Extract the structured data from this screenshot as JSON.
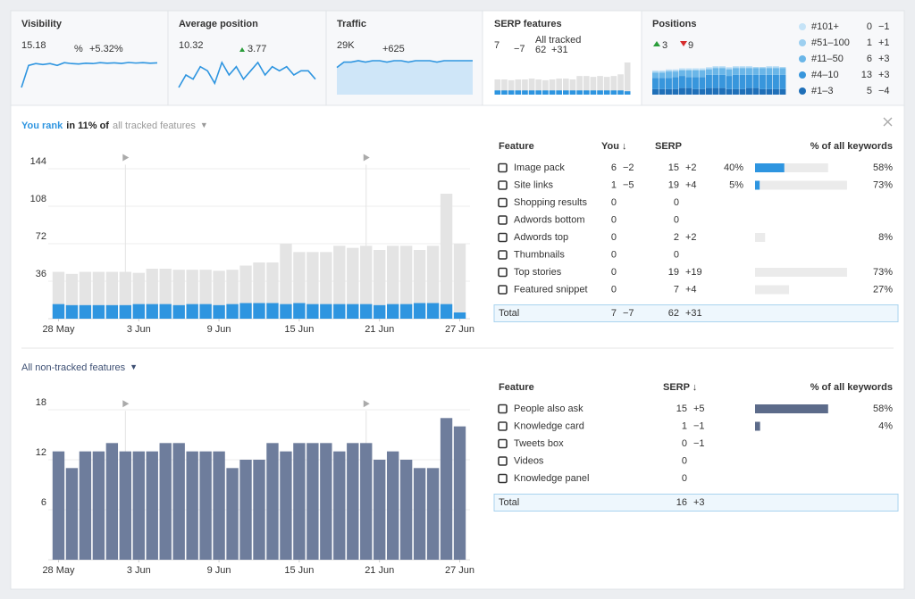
{
  "top": {
    "visibility": {
      "label": "Visibility",
      "value": "15.18",
      "unit": "%",
      "change": "+5.32%",
      "spark": [
        2,
        14,
        15,
        14.5,
        15,
        14,
        15.5,
        15,
        14.8,
        15.2,
        15,
        15.5,
        15.2,
        15.4,
        15.1,
        15.6,
        15.3,
        15.5,
        15.2,
        15.4
      ]
    },
    "position": {
      "label": "Average position",
      "value": "10.32",
      "change": "3.77",
      "spark": [
        3,
        6,
        5,
        8,
        7,
        4,
        9,
        6,
        8,
        5,
        7,
        9,
        6,
        8,
        7,
        8,
        6,
        7,
        7,
        5
      ]
    },
    "traffic": {
      "label": "Traffic",
      "value": "29K",
      "change": "+625",
      "spark": [
        20,
        24,
        24,
        25,
        24,
        25,
        25,
        24,
        25,
        25,
        24,
        25,
        25,
        25,
        24,
        25,
        25,
        25,
        25,
        25
      ]
    },
    "serp": {
      "label": "SERP features",
      "value": "7",
      "change": "−7",
      "sub_label": "All tracked",
      "sub_value": "62",
      "sub_change": "+31",
      "total": [
        18,
        18,
        17,
        18,
        18,
        19,
        18,
        17,
        18,
        19,
        19,
        18,
        22,
        22,
        21,
        22,
        21,
        22,
        24,
        38
      ],
      "you": [
        5,
        5,
        5,
        5,
        5,
        5,
        5,
        5,
        5,
        5,
        5,
        5,
        5,
        5,
        5,
        5,
        5,
        5,
        5,
        4
      ]
    },
    "positions": {
      "label": "Positions",
      "up": "3",
      "down": "9",
      "series": [
        {
          "name": "#1–3",
          "color": "#1f6fb8",
          "count": "5",
          "change": "−4",
          "values": [
            5,
            5,
            5,
            5,
            6,
            6,
            5,
            5,
            6,
            6,
            6,
            5,
            5,
            5,
            6,
            6,
            5,
            5,
            5,
            5
          ]
        },
        {
          "name": "#4–10",
          "color": "#3896dc",
          "count": "13",
          "change": "+3",
          "values": [
            10,
            10,
            10,
            11,
            11,
            10,
            11,
            11,
            12,
            12,
            12,
            12,
            13,
            13,
            12,
            12,
            13,
            13,
            13,
            13
          ]
        },
        {
          "name": "#11–50",
          "color": "#6ab6e8",
          "count": "6",
          "change": "+3",
          "values": [
            5,
            5,
            6,
            5,
            5,
            6,
            6,
            6,
            5,
            6,
            6,
            6,
            6,
            6,
            6,
            6,
            6,
            6,
            6,
            6
          ]
        },
        {
          "name": "#51–100",
          "color": "#9ccff0",
          "count": "1",
          "change": "+1",
          "values": [
            1,
            1,
            1,
            1,
            1,
            1,
            1,
            1,
            1,
            1,
            1,
            1,
            1,
            1,
            1,
            1,
            1,
            1,
            1,
            1
          ]
        },
        {
          "name": "#101+",
          "color": "#c5e3f7",
          "count": "0",
          "change": "−1",
          "values": [
            1,
            1,
            1,
            1,
            1,
            1,
            1,
            1,
            1,
            1,
            1,
            1,
            1,
            1,
            1,
            0,
            0,
            1,
            1,
            0
          ]
        }
      ]
    }
  },
  "tracked": {
    "title": [
      "You rank",
      "in 11% of",
      "all tracked features"
    ],
    "chart": {
      "type": "bar",
      "categories": [
        "28 May",
        null,
        null,
        null,
        null,
        null,
        "3 Jun",
        null,
        null,
        null,
        null,
        null,
        "9 Jun",
        null,
        null,
        null,
        null,
        null,
        "15 Jun",
        null,
        null,
        null,
        null,
        null,
        "21 Jun",
        null,
        null,
        null,
        null,
        null,
        "27 Jun"
      ],
      "series": [
        {
          "color": "#e4e4e4",
          "values": [
            45,
            43,
            45,
            45,
            45,
            45,
            44,
            48,
            48,
            47,
            47,
            47,
            46,
            47,
            51,
            54,
            54,
            72,
            64,
            64,
            64,
            70,
            68,
            70,
            66,
            70,
            70,
            66,
            70,
            120,
            72
          ]
        },
        {
          "color": "#2e95e0",
          "values": [
            14,
            13,
            13,
            13,
            13,
            13,
            14,
            14,
            14,
            13,
            14,
            14,
            13,
            14,
            15,
            15,
            15,
            14,
            15,
            14,
            14,
            14,
            14,
            14,
            13,
            14,
            14,
            15,
            15,
            14,
            6
          ]
        }
      ],
      "ylim": [
        0,
        165
      ],
      "yticks": [
        36,
        72,
        108,
        144
      ],
      "grid": true
    },
    "table": {
      "headers": [
        "Feature",
        "You ↓",
        "SERP",
        "% of all keywords"
      ],
      "rows": [
        {
          "feature": "Image pack",
          "you": "6",
          "you_change": "−2",
          "serp": "15",
          "serp_change": "+2",
          "pct_you": 40,
          "pct_you_label": "40%",
          "pct_all": 58,
          "pct_all_label": "58%"
        },
        {
          "feature": "Site links",
          "you": "1",
          "you_change": "−5",
          "serp": "19",
          "serp_change": "+4",
          "pct_you": 5,
          "pct_you_label": "5%",
          "pct_all": 73,
          "pct_all_label": "73%"
        },
        {
          "feature": "Shopping results",
          "you": "0",
          "serp": "0"
        },
        {
          "feature": "Adwords bottom",
          "you": "0",
          "serp": "0"
        },
        {
          "feature": "Adwords top",
          "you": "0",
          "serp": "2",
          "serp_change": "+2",
          "pct_all": 8,
          "pct_all_label": "8%"
        },
        {
          "feature": "Thumbnails",
          "you": "0",
          "serp": "0"
        },
        {
          "feature": "Top stories",
          "you": "0",
          "serp": "19",
          "serp_change": "+19",
          "pct_all": 73,
          "pct_all_label": "73%"
        },
        {
          "feature": "Featured snippet",
          "you": "0",
          "serp": "7",
          "serp_change": "+4",
          "pct_all": 27,
          "pct_all_label": "27%"
        }
      ],
      "total": {
        "feature": "Total",
        "you": "7",
        "you_change": "−7",
        "serp": "62",
        "serp_change": "+31"
      }
    }
  },
  "nontracked": {
    "title": [
      "All non-tracked features"
    ],
    "chart": {
      "type": "bar",
      "categories": [
        "28 May",
        null,
        null,
        null,
        null,
        null,
        "3 Jun",
        null,
        null,
        null,
        null,
        null,
        "9 Jun",
        null,
        null,
        null,
        null,
        null,
        "15 Jun",
        null,
        null,
        null,
        null,
        null,
        "21 Jun",
        null,
        null,
        null,
        null,
        null,
        "27 Jun"
      ],
      "series": [
        {
          "color": "#6e7d9c",
          "values": [
            13,
            11,
            13,
            13,
            14,
            13,
            13,
            13,
            14,
            14,
            13,
            13,
            13,
            11,
            12,
            12,
            14,
            13,
            14,
            14,
            14,
            13,
            14,
            14,
            12,
            13,
            12,
            11,
            11,
            17,
            16
          ]
        }
      ],
      "ylim": [
        0,
        20
      ],
      "yticks": [
        6,
        12,
        18
      ],
      "grid": true
    },
    "table": {
      "headers": [
        "Feature",
        "SERP ↓",
        "% of all keywords"
      ],
      "rows": [
        {
          "feature": "People also ask",
          "serp": "15",
          "serp_change": "+5",
          "pct_all": 58,
          "pct_all_label": "58%"
        },
        {
          "feature": "Knowledge card",
          "serp": "1",
          "serp_change": "−1",
          "pct_all": 4,
          "pct_all_label": "4%"
        },
        {
          "feature": "Tweets box",
          "serp": "0",
          "serp_change": "−1"
        },
        {
          "feature": "Videos",
          "serp": "0"
        },
        {
          "feature": "Knowledge panel",
          "serp": "0"
        }
      ],
      "total": {
        "feature": "Total",
        "serp": "16",
        "serp_change": "+3"
      }
    }
  }
}
